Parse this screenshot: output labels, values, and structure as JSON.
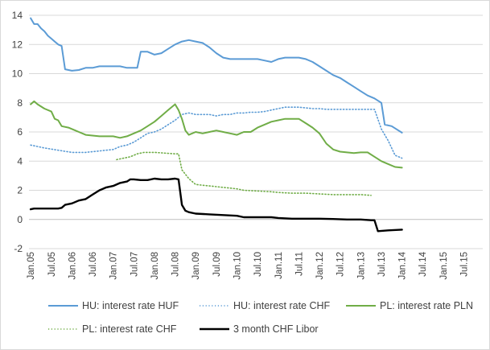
{
  "chart_data": {
    "type": "line",
    "ylim": [
      -2,
      14
    ],
    "yticks": [
      -2,
      0,
      2,
      4,
      6,
      8,
      10,
      12,
      14
    ],
    "xticks": [
      "Jan.05",
      "Jul.05",
      "Jan.06",
      "Jul.06",
      "Jan.07",
      "Jul.07",
      "Jan.08",
      "Jul.08",
      "Jan.09",
      "Jul.09",
      "Jan.10",
      "Jul.10",
      "Jan.11",
      "Jul.11",
      "Jan.12",
      "Jul.12",
      "Jan.13",
      "Jul.13",
      "Jan.14",
      "Jul.14",
      "Jan.15",
      "Jul.15"
    ],
    "grid": true,
    "legend_position": "bottom",
    "series": [
      {
        "name": "HU: interest rate HUF",
        "color": "#5b9bd5",
        "style": "solid",
        "points": [
          [
            0,
            13.8
          ],
          [
            1,
            13.4
          ],
          [
            2,
            13.4
          ],
          [
            3,
            13.1
          ],
          [
            4,
            12.9
          ],
          [
            5,
            12.6
          ],
          [
            6,
            12.4
          ],
          [
            7,
            12.2
          ],
          [
            8,
            12.0
          ],
          [
            9,
            11.9
          ],
          [
            10,
            10.3
          ],
          [
            12,
            10.2
          ],
          [
            14,
            10.25
          ],
          [
            16,
            10.4
          ],
          [
            18,
            10.4
          ],
          [
            20,
            10.5
          ],
          [
            22,
            10.5
          ],
          [
            24,
            10.5
          ],
          [
            26,
            10.5
          ],
          [
            28,
            10.4
          ],
          [
            30,
            10.4
          ],
          [
            31,
            10.4
          ],
          [
            32,
            11.5
          ],
          [
            34,
            11.5
          ],
          [
            36,
            11.3
          ],
          [
            38,
            11.4
          ],
          [
            40,
            11.7
          ],
          [
            42,
            12.0
          ],
          [
            44,
            12.2
          ],
          [
            46,
            12.3
          ],
          [
            48,
            12.2
          ],
          [
            50,
            12.1
          ],
          [
            52,
            11.8
          ],
          [
            54,
            11.4
          ],
          [
            56,
            11.1
          ],
          [
            58,
            11.0
          ],
          [
            60,
            11.0
          ],
          [
            62,
            11.0
          ],
          [
            64,
            11.0
          ],
          [
            66,
            11.0
          ],
          [
            68,
            10.9
          ],
          [
            70,
            10.8
          ],
          [
            72,
            11.0
          ],
          [
            74,
            11.1
          ],
          [
            76,
            11.1
          ],
          [
            78,
            11.1
          ],
          [
            80,
            11.0
          ],
          [
            82,
            10.8
          ],
          [
            84,
            10.5
          ],
          [
            86,
            10.2
          ],
          [
            88,
            9.9
          ],
          [
            90,
            9.7
          ],
          [
            92,
            9.4
          ],
          [
            94,
            9.1
          ],
          [
            96,
            8.8
          ],
          [
            98,
            8.5
          ],
          [
            100,
            8.3
          ],
          [
            102,
            8.0
          ],
          [
            103,
            6.5
          ],
          [
            105,
            6.4
          ],
          [
            107,
            6.1
          ],
          [
            108,
            5.95
          ]
        ]
      },
      {
        "name": "HU: interest rate CHF",
        "color": "#5b9bd5",
        "style": "dotted",
        "points": [
          [
            0,
            5.1
          ],
          [
            4,
            4.9
          ],
          [
            8,
            4.75
          ],
          [
            12,
            4.6
          ],
          [
            16,
            4.6
          ],
          [
            20,
            4.7
          ],
          [
            24,
            4.8
          ],
          [
            26,
            5.0
          ],
          [
            28,
            5.1
          ],
          [
            30,
            5.3
          ],
          [
            32,
            5.6
          ],
          [
            34,
            5.9
          ],
          [
            36,
            6.0
          ],
          [
            38,
            6.2
          ],
          [
            40,
            6.5
          ],
          [
            42,
            6.8
          ],
          [
            44,
            7.2
          ],
          [
            46,
            7.3
          ],
          [
            48,
            7.2
          ],
          [
            50,
            7.2
          ],
          [
            52,
            7.2
          ],
          [
            54,
            7.1
          ],
          [
            56,
            7.2
          ],
          [
            58,
            7.2
          ],
          [
            60,
            7.3
          ],
          [
            62,
            7.3
          ],
          [
            64,
            7.35
          ],
          [
            66,
            7.35
          ],
          [
            68,
            7.4
          ],
          [
            70,
            7.5
          ],
          [
            72,
            7.6
          ],
          [
            74,
            7.7
          ],
          [
            76,
            7.7
          ],
          [
            78,
            7.7
          ],
          [
            80,
            7.65
          ],
          [
            82,
            7.6
          ],
          [
            84,
            7.6
          ],
          [
            86,
            7.55
          ],
          [
            88,
            7.55
          ],
          [
            90,
            7.55
          ],
          [
            92,
            7.55
          ],
          [
            94,
            7.55
          ],
          [
            96,
            7.55
          ],
          [
            98,
            7.55
          ],
          [
            100,
            7.55
          ],
          [
            102,
            6.2
          ],
          [
            104,
            5.4
          ],
          [
            106,
            4.4
          ],
          [
            108,
            4.2
          ]
        ]
      },
      {
        "name": "PL: interest rate PLN",
        "color": "#70ad47",
        "style": "solid",
        "points": [
          [
            0,
            7.9
          ],
          [
            1,
            8.1
          ],
          [
            2,
            7.9
          ],
          [
            4,
            7.6
          ],
          [
            6,
            7.4
          ],
          [
            7,
            6.9
          ],
          [
            8,
            6.8
          ],
          [
            9,
            6.4
          ],
          [
            11,
            6.3
          ],
          [
            13,
            6.1
          ],
          [
            14,
            6.0
          ],
          [
            16,
            5.8
          ],
          [
            18,
            5.75
          ],
          [
            20,
            5.7
          ],
          [
            22,
            5.7
          ],
          [
            24,
            5.7
          ],
          [
            26,
            5.6
          ],
          [
            28,
            5.7
          ],
          [
            30,
            5.9
          ],
          [
            32,
            6.1
          ],
          [
            34,
            6.4
          ],
          [
            36,
            6.7
          ],
          [
            38,
            7.1
          ],
          [
            40,
            7.5
          ],
          [
            42,
            7.9
          ],
          [
            43,
            7.5
          ],
          [
            44,
            6.9
          ],
          [
            45,
            6.1
          ],
          [
            46,
            5.8
          ],
          [
            48,
            6.0
          ],
          [
            50,
            5.9
          ],
          [
            52,
            6.0
          ],
          [
            54,
            6.1
          ],
          [
            56,
            6.0
          ],
          [
            58,
            5.9
          ],
          [
            60,
            5.8
          ],
          [
            62,
            6.0
          ],
          [
            64,
            6.0
          ],
          [
            66,
            6.3
          ],
          [
            68,
            6.5
          ],
          [
            70,
            6.7
          ],
          [
            72,
            6.8
          ],
          [
            74,
            6.9
          ],
          [
            76,
            6.9
          ],
          [
            78,
            6.9
          ],
          [
            80,
            6.6
          ],
          [
            82,
            6.3
          ],
          [
            84,
            5.9
          ],
          [
            86,
            5.2
          ],
          [
            88,
            4.8
          ],
          [
            90,
            4.65
          ],
          [
            92,
            4.6
          ],
          [
            94,
            4.55
          ],
          [
            96,
            4.6
          ],
          [
            98,
            4.6
          ],
          [
            100,
            4.3
          ],
          [
            102,
            4.0
          ],
          [
            104,
            3.8
          ],
          [
            106,
            3.6
          ],
          [
            108,
            3.55
          ]
        ]
      },
      {
        "name": "PL: interest rate CHF",
        "color": "#70ad47",
        "style": "dotted",
        "points": [
          [
            25,
            4.1
          ],
          [
            27,
            4.2
          ],
          [
            29,
            4.3
          ],
          [
            31,
            4.5
          ],
          [
            33,
            4.6
          ],
          [
            36,
            4.6
          ],
          [
            39,
            4.55
          ],
          [
            42,
            4.5
          ],
          [
            43,
            4.5
          ],
          [
            44,
            3.4
          ],
          [
            46,
            2.8
          ],
          [
            48,
            2.4
          ],
          [
            52,
            2.3
          ],
          [
            56,
            2.2
          ],
          [
            60,
            2.1
          ],
          [
            62,
            2.0
          ],
          [
            66,
            1.95
          ],
          [
            70,
            1.9
          ],
          [
            72,
            1.85
          ],
          [
            76,
            1.8
          ],
          [
            80,
            1.8
          ],
          [
            84,
            1.75
          ],
          [
            88,
            1.7
          ],
          [
            92,
            1.7
          ],
          [
            96,
            1.7
          ],
          [
            99,
            1.65
          ]
        ]
      },
      {
        "name": "3 month CHF Libor",
        "color": "#000000",
        "style": "solid",
        "points": [
          [
            0,
            0.7
          ],
          [
            1,
            0.75
          ],
          [
            4,
            0.75
          ],
          [
            8,
            0.75
          ],
          [
            9,
            0.8
          ],
          [
            10,
            1.0
          ],
          [
            12,
            1.1
          ],
          [
            14,
            1.3
          ],
          [
            16,
            1.4
          ],
          [
            18,
            1.7
          ],
          [
            20,
            2.0
          ],
          [
            22,
            2.2
          ],
          [
            24,
            2.3
          ],
          [
            26,
            2.5
          ],
          [
            28,
            2.6
          ],
          [
            29,
            2.75
          ],
          [
            30,
            2.75
          ],
          [
            32,
            2.7
          ],
          [
            34,
            2.7
          ],
          [
            36,
            2.8
          ],
          [
            38,
            2.75
          ],
          [
            40,
            2.75
          ],
          [
            42,
            2.8
          ],
          [
            43,
            2.75
          ],
          [
            44,
            1.0
          ],
          [
            45,
            0.6
          ],
          [
            46,
            0.5
          ],
          [
            48,
            0.4
          ],
          [
            52,
            0.35
          ],
          [
            56,
            0.3
          ],
          [
            60,
            0.25
          ],
          [
            62,
            0.15
          ],
          [
            66,
            0.15
          ],
          [
            70,
            0.15
          ],
          [
            72,
            0.1
          ],
          [
            76,
            0.05
          ],
          [
            80,
            0.05
          ],
          [
            84,
            0.05
          ],
          [
            88,
            0.03
          ],
          [
            92,
            0.0
          ],
          [
            96,
            0.0
          ],
          [
            99,
            -0.05
          ],
          [
            100,
            -0.05
          ],
          [
            101,
            -0.8
          ],
          [
            104,
            -0.75
          ],
          [
            108,
            -0.7
          ]
        ]
      }
    ]
  }
}
